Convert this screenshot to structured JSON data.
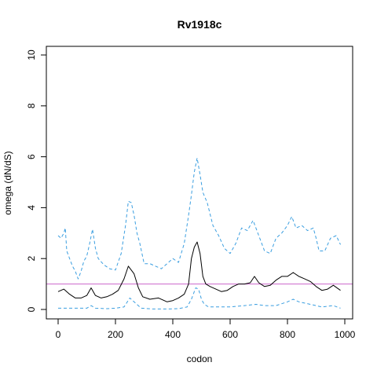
{
  "chart_data": {
    "type": "line",
    "title": "Rv1918c",
    "xlabel": "codon",
    "ylabel": "omega (dN/dS)",
    "xlim": [
      0,
      1000
    ],
    "ylim": [
      0,
      10
    ],
    "x_ticks": [
      0,
      200,
      400,
      600,
      800,
      1000
    ],
    "y_ticks": [
      0,
      2,
      4,
      6,
      8,
      10
    ],
    "grid": false,
    "reference_line": {
      "y": 1,
      "color": "#cc66cc"
    },
    "colors": {
      "mean": "#000000",
      "bounds": "#3a9ee0",
      "reference": "#cc66cc"
    },
    "series": [
      {
        "line_style": "solid",
        "x": [
          0,
          20,
          40,
          60,
          80,
          100,
          115,
          130,
          150,
          170,
          190,
          210,
          230,
          245,
          255,
          265,
          280,
          295,
          320,
          350,
          380,
          400,
          420,
          440,
          455,
          465,
          475,
          485,
          495,
          505,
          515,
          530,
          550,
          570,
          590,
          610,
          630,
          650,
          670,
          685,
          700,
          720,
          740,
          760,
          780,
          800,
          820,
          840,
          860,
          880,
          900,
          920,
          940,
          960,
          985
        ],
        "y": [
          0.7,
          0.8,
          0.6,
          0.45,
          0.45,
          0.55,
          0.85,
          0.55,
          0.45,
          0.5,
          0.6,
          0.75,
          1.2,
          1.7,
          1.55,
          1.4,
          0.85,
          0.5,
          0.4,
          0.45,
          0.3,
          0.35,
          0.45,
          0.6,
          1.0,
          2.0,
          2.45,
          2.65,
          2.2,
          1.3,
          1.0,
          0.9,
          0.8,
          0.7,
          0.75,
          0.9,
          1.0,
          1.0,
          1.05,
          1.3,
          1.05,
          0.9,
          0.95,
          1.15,
          1.3,
          1.3,
          1.45,
          1.3,
          1.2,
          1.1,
          0.9,
          0.75,
          0.8,
          0.95,
          0.75
        ]
      },
      {
        "line_style": "dashed",
        "x": [
          0,
          10,
          20,
          25,
          30,
          40,
          50,
          60,
          70,
          80,
          90,
          100,
          110,
          120,
          130,
          140,
          160,
          180,
          200,
          220,
          235,
          245,
          255,
          265,
          275,
          285,
          300,
          320,
          340,
          360,
          380,
          400,
          420,
          440,
          455,
          465,
          475,
          485,
          495,
          505,
          520,
          540,
          560,
          580,
          600,
          620,
          640,
          660,
          680,
          700,
          720,
          740,
          760,
          780,
          800,
          815,
          830,
          850,
          870,
          890,
          900,
          910,
          930,
          950,
          970,
          985
        ],
        "y": [
          2.9,
          2.8,
          3.0,
          3.2,
          2.3,
          2.0,
          1.7,
          1.5,
          1.2,
          1.5,
          1.9,
          2.1,
          2.6,
          3.15,
          2.4,
          2.0,
          1.75,
          1.6,
          1.55,
          2.2,
          3.3,
          4.25,
          4.2,
          3.7,
          3.0,
          2.6,
          1.8,
          1.8,
          1.7,
          1.6,
          1.8,
          2.0,
          1.85,
          2.6,
          3.7,
          4.5,
          5.4,
          5.95,
          5.3,
          4.6,
          4.2,
          3.3,
          2.9,
          2.4,
          2.2,
          2.6,
          3.2,
          3.1,
          3.5,
          2.9,
          2.3,
          2.2,
          2.8,
          3.0,
          3.3,
          3.65,
          3.2,
          3.3,
          3.1,
          3.2,
          2.8,
          2.3,
          2.3,
          2.8,
          2.9,
          2.55
        ]
      },
      {
        "line_style": "dashed",
        "x": [
          0,
          50,
          100,
          115,
          130,
          170,
          200,
          230,
          250,
          265,
          290,
          330,
          380,
          420,
          450,
          465,
          480,
          490,
          500,
          510,
          525,
          560,
          600,
          650,
          690,
          720,
          760,
          800,
          820,
          840,
          880,
          920,
          960,
          985
        ],
        "y": [
          0.05,
          0.05,
          0.05,
          0.15,
          0.05,
          0.03,
          0.05,
          0.1,
          0.45,
          0.3,
          0.05,
          0.02,
          0.02,
          0.03,
          0.1,
          0.4,
          0.85,
          0.8,
          0.4,
          0.2,
          0.1,
          0.1,
          0.1,
          0.15,
          0.2,
          0.15,
          0.15,
          0.3,
          0.4,
          0.3,
          0.2,
          0.1,
          0.15,
          0.05
        ]
      }
    ]
  }
}
